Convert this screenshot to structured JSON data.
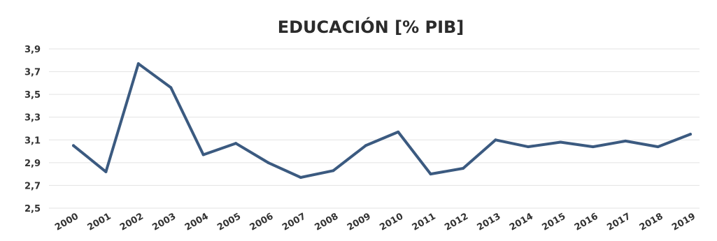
{
  "chart_data": {
    "type": "line",
    "title": "EDUCACIÓN [% PIB]",
    "xlabel": "",
    "ylabel": "",
    "categories": [
      "2000",
      "2001",
      "2002",
      "2003",
      "2004",
      "2005",
      "2006",
      "2007",
      "2008",
      "2009",
      "2010",
      "2011",
      "2012",
      "2013",
      "2014",
      "2015",
      "2016",
      "2017",
      "2018",
      "2019"
    ],
    "series": [
      {
        "values": [
          3.05,
          2.82,
          3.77,
          3.56,
          2.97,
          3.07,
          2.9,
          2.77,
          2.83,
          3.05,
          3.17,
          2.8,
          2.85,
          3.1,
          3.04,
          3.08,
          3.04,
          3.09,
          3.04,
          3.15
        ]
      }
    ],
    "ylim": [
      2.5,
      3.9
    ],
    "yticks": [
      "2,5",
      "2,7",
      "2,9",
      "3,1",
      "3,3",
      "3,5",
      "3,7",
      "3,9"
    ],
    "grid": true,
    "legend": "none",
    "line_color": "#3b5a80"
  }
}
